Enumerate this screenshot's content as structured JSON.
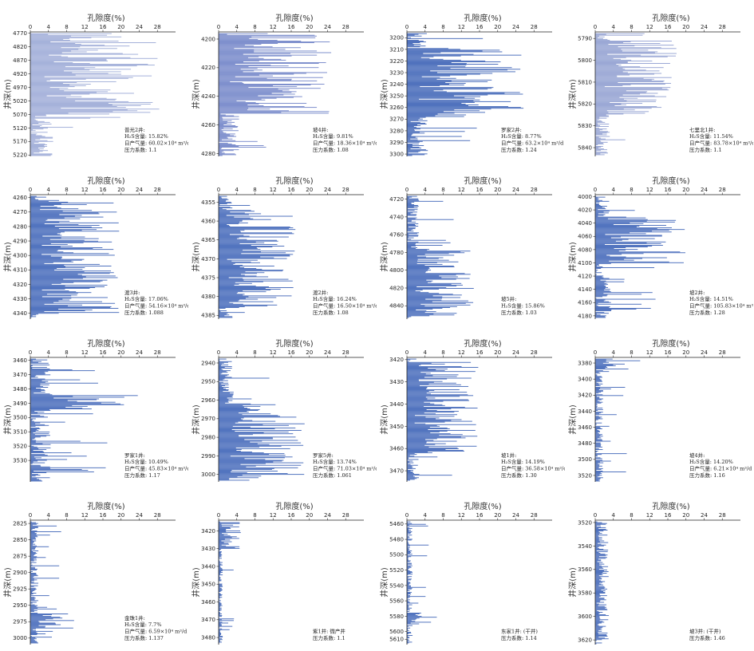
{
  "chart_data": [
    {
      "type": "bar",
      "orientation": "horizontal",
      "title": "孔隙度(%)",
      "ylabel": "井深(m)",
      "xlim": [
        0,
        32
      ],
      "xticks": [
        0,
        4,
        8,
        12,
        16,
        20,
        24,
        28
      ],
      "ylim": [
        4765,
        5225
      ],
      "yticks": [
        4770,
        4820,
        4870,
        4920,
        4970,
        5020,
        5070,
        5120,
        5170,
        5220
      ],
      "bar_color": "#9aa8d6",
      "dense_top": 4770,
      "dense_bottom": 5070,
      "peak": 29,
      "annotation": [
        "普光2井:",
        "H₂S含量: 15.82%",
        "日产气量: 60.02×10⁴ m³/d",
        "压力系数: 1.1"
      ]
    },
    {
      "type": "bar",
      "orientation": "horizontal",
      "title": "孔隙度(%)",
      "ylabel": "井深(m)",
      "xlim": [
        0,
        32
      ],
      "xticks": [
        0,
        4,
        8,
        12,
        16,
        20,
        24,
        28
      ],
      "ylim": [
        4195,
        4282
      ],
      "yticks": [
        4200,
        4220,
        4240,
        4260,
        4280
      ],
      "bar_color": "#6f82c7",
      "dense_top": 4197,
      "dense_bottom": 4252,
      "peak": 25,
      "annotation": [
        "坡4井:",
        "H₂S含量: 9.81%",
        "日产气量: 18.36×10⁴ m³/d",
        "压力系数: 1.08"
      ]
    },
    {
      "type": "bar",
      "orientation": "horizontal",
      "title": "孔隙度(%)",
      "ylabel": "井深(m)",
      "xlim": [
        0,
        32
      ],
      "xticks": [
        0,
        4,
        8,
        12,
        16,
        20,
        24,
        28
      ],
      "ylim": [
        3195,
        3302
      ],
      "yticks": [
        3200,
        3210,
        3220,
        3230,
        3240,
        3250,
        3260,
        3270,
        3280,
        3290,
        3300
      ],
      "bar_color": "#3b61b5",
      "dense_top": 3210,
      "dense_bottom": 3268,
      "peak": 26,
      "annotation": [
        "罗家2井:",
        "H₂S含量: 8.77%",
        "日产气量: 63.2×10⁴ m³/d",
        "压力系数: 1.24"
      ]
    },
    {
      "type": "bar",
      "orientation": "horizontal",
      "title": "孔隙度(%)",
      "ylabel": "井深(m)",
      "xlim": [
        0,
        32
      ],
      "xticks": [
        0,
        4,
        8,
        12,
        16,
        20,
        24,
        28
      ],
      "ylim": [
        5787,
        5844
      ],
      "yticks": [
        5790,
        5800,
        5810,
        5820,
        5830,
        5840
      ],
      "bar_color": "#8f9ed0",
      "dense_top": 5791,
      "dense_bottom": 5825,
      "peak": 18,
      "annotation": [
        "七里北1井:",
        "H₂S含量: 11.54%",
        "日产气量: 83.78×10⁴ m³/d",
        "压力系数: 1.1"
      ]
    },
    {
      "type": "bar",
      "orientation": "horizontal",
      "title": "孔隙度(%)",
      "ylabel": "井深(m)",
      "xlim": [
        0,
        32
      ],
      "xticks": [
        0,
        4,
        8,
        12,
        16,
        20,
        24,
        28
      ],
      "ylim": [
        4258,
        4344
      ],
      "yticks": [
        4260,
        4270,
        4280,
        4290,
        4300,
        4310,
        4320,
        4330,
        4340
      ],
      "bar_color": "#3d63b7",
      "dense_top": 4262,
      "dense_bottom": 4340,
      "peak": 20,
      "annotation": [
        "渡3井:",
        "H₂S含量: 17.06%",
        "日产气量: 54.16×10⁴ m³/d",
        "压力系数: 1.088"
      ]
    },
    {
      "type": "bar",
      "orientation": "horizontal",
      "title": "孔隙度(%)",
      "ylabel": "井深(m)",
      "xlim": [
        0,
        32
      ],
      "xticks": [
        0,
        4,
        8,
        12,
        16,
        20,
        24,
        28
      ],
      "ylim": [
        4353,
        4386
      ],
      "yticks": [
        4355,
        4360,
        4365,
        4370,
        4375,
        4380,
        4385
      ],
      "bar_color": "#3d63b7",
      "dense_top": 4357,
      "dense_bottom": 4383,
      "peak": 17,
      "annotation": [
        "渡2井:",
        "H₂S含量: 16.24%",
        "日产气量: 16.50×10⁴ m³/d",
        "压力系数: 1.08"
      ]
    },
    {
      "type": "bar",
      "orientation": "horizontal",
      "title": "孔隙度(%)",
      "ylabel": "井深(m)",
      "xlim": [
        0,
        32
      ],
      "xticks": [
        0,
        4,
        8,
        12,
        16,
        20,
        24,
        28
      ],
      "ylim": [
        4715,
        4855
      ],
      "yticks": [
        4720,
        4740,
        4760,
        4780,
        4800,
        4820,
        4840
      ],
      "bar_color": "#3d63b7",
      "dense_top": 4775,
      "dense_bottom": 4852,
      "peak": 15,
      "annotation": [
        "坡5井:",
        "H₂S含量: 15.86%",
        "压力系数: 1.03"
      ]
    },
    {
      "type": "bar",
      "orientation": "horizontal",
      "title": "孔隙度(%)",
      "ylabel": "井深(m)",
      "xlim": [
        0,
        32
      ],
      "xticks": [
        0,
        4,
        8,
        12,
        16,
        20,
        24,
        28
      ],
      "ylim": [
        3997,
        4185
      ],
      "yticks": [
        4000,
        4020,
        4040,
        4060,
        4080,
        4100,
        4120,
        4140,
        4160,
        4180
      ],
      "bar_color": "#3d63b7",
      "dense_top": 4030,
      "dense_bottom": 4100,
      "peak": 20,
      "annotation": [
        "坡2井:",
        "H₂S含量: 14.51%",
        "日产气量: 105.83×10⁴ m³/d",
        "压力系数: 1.28"
      ]
    },
    {
      "type": "bar",
      "orientation": "horizontal",
      "title": "孔隙度(%)",
      "ylabel": "井深(m)",
      "xlim": [
        0,
        32
      ],
      "xticks": [
        0,
        4,
        8,
        12,
        16,
        20,
        24,
        28
      ],
      "ylim": [
        3458,
        3545
      ],
      "yticks": [
        3460,
        3470,
        3480,
        3490,
        3500,
        3510,
        3520,
        3530
      ],
      "bar_color": "#3d63b7",
      "dense_top": 3484,
      "dense_bottom": 3494,
      "peak": 25,
      "annotation": [
        "罗家1井:",
        "H₂S含量: 10.49%",
        "日产气量: 45.83×10⁴ m³/d",
        "压力系数: 1.17"
      ]
    },
    {
      "type": "bar",
      "orientation": "horizontal",
      "title": "孔隙度(%)",
      "ylabel": "井深(m)",
      "xlim": [
        0,
        32
      ],
      "xticks": [
        0,
        4,
        8,
        12,
        16,
        20,
        24,
        28
      ],
      "ylim": [
        2937,
        3004
      ],
      "yticks": [
        2940,
        2950,
        2960,
        2970,
        2980,
        2990,
        3000
      ],
      "bar_color": "#3d63b7",
      "dense_top": 2962,
      "dense_bottom": 3002,
      "peak": 19,
      "annotation": [
        "罗家5井:",
        "H₂S含量: 13.74%",
        "日产气量: 71.03×10⁴ m³/d",
        "压力系数: 1.061"
      ]
    },
    {
      "type": "bar",
      "orientation": "horizontal",
      "title": "孔隙度(%)",
      "ylabel": "井深(m)",
      "xlim": [
        0,
        32
      ],
      "xticks": [
        0,
        4,
        8,
        12,
        16,
        20,
        24,
        28
      ],
      "ylim": [
        3419,
        3475
      ],
      "yticks": [
        3420,
        3430,
        3440,
        3450,
        3460,
        3470
      ],
      "bar_color": "#3d63b7",
      "dense_top": 3421,
      "dense_bottom": 3462,
      "peak": 16,
      "annotation": [
        "坡1井:",
        "H₂S含量: 14.19%",
        "日产气量: 36.58×10⁴ m³/d",
        "压力系数: 1.30"
      ]
    },
    {
      "type": "bar",
      "orientation": "horizontal",
      "title": "孔隙度(%)",
      "ylabel": "井深(m)",
      "xlim": [
        0,
        32
      ],
      "xticks": [
        0,
        4,
        8,
        12,
        16,
        20,
        24,
        28
      ],
      "ylim": [
        3373,
        3528
      ],
      "yticks": [
        3380,
        3400,
        3420,
        3440,
        3460,
        3480,
        3500,
        3520
      ],
      "bar_color": "#3d63b7",
      "dense_top": 3374,
      "dense_bottom": 3388,
      "peak": 10,
      "annotation": [
        "坡4井:",
        "H₂S含量: 14.20%",
        "日产气量: 6.21×10⁴ m³/d",
        "压力系数: 1.16"
      ]
    },
    {
      "type": "bar",
      "orientation": "horizontal",
      "title": "孔隙度(%)",
      "ylabel": "井深(m)",
      "xlim": [
        0,
        32
      ],
      "xticks": [
        0,
        4,
        8,
        12,
        16,
        20,
        24,
        28
      ],
      "ylim": [
        2820,
        3010
      ],
      "yticks": [
        2825,
        2850,
        2875,
        2900,
        2925,
        2950,
        2975,
        3000
      ],
      "bar_color": "#3d63b7",
      "dense_top": 2962,
      "dense_bottom": 2985,
      "peak": 10,
      "annotation": [
        "金珠1井:",
        "H₂S含量: 7.7%",
        "日产气量: 6.59×10⁴ m³/d",
        "压力系数: 1.137"
      ]
    },
    {
      "type": "bar",
      "orientation": "horizontal",
      "title": "孔隙度(%)",
      "ylabel": "井深(m)",
      "xlim": [
        0,
        32
      ],
      "xticks": [
        0,
        4,
        8,
        12,
        16,
        20,
        24,
        28
      ],
      "ylim": [
        3414,
        3484
      ],
      "yticks": [
        3420,
        3430,
        3440,
        3450,
        3460,
        3470,
        3480
      ],
      "bar_color": "#3d63b7",
      "dense_top": 3415,
      "dense_bottom": 3430,
      "peak": 5,
      "annotation": [
        "紫1井: 微产井",
        "压力系数: 1.1"
      ]
    },
    {
      "type": "bar",
      "orientation": "horizontal",
      "title": "孔隙度(%)",
      "ylabel": "井深(m)",
      "xlim": [
        0,
        32
      ],
      "xticks": [
        0,
        4,
        8,
        12,
        16,
        20,
        24,
        28
      ],
      "ylim": [
        5455,
        5617
      ],
      "yticks": [
        5460,
        5480,
        5500,
        5520,
        5540,
        5560,
        5580,
        5600,
        5610
      ],
      "bar_color": "#3d63b7",
      "dense_top": 5575,
      "dense_bottom": 5588,
      "peak": 7,
      "annotation": [
        "东家1井: (干井)",
        "压力系数: 1.14"
      ]
    },
    {
      "type": "bar",
      "orientation": "horizontal",
      "title": "孔隙度(%)",
      "ylabel": "井深(m)",
      "xlim": [
        0,
        32
      ],
      "xticks": [
        0,
        4,
        8,
        12,
        16,
        20,
        24,
        28
      ],
      "ylim": [
        3518,
        3624
      ],
      "yticks": [
        3520,
        3540,
        3560,
        3580,
        3600,
        3620
      ],
      "bar_color": "#3d63b7",
      "dense_top": 3520,
      "dense_bottom": 3620,
      "peak": 3,
      "annotation": [
        "坡3井: (干井)",
        "压力系数: 1.46"
      ]
    }
  ]
}
